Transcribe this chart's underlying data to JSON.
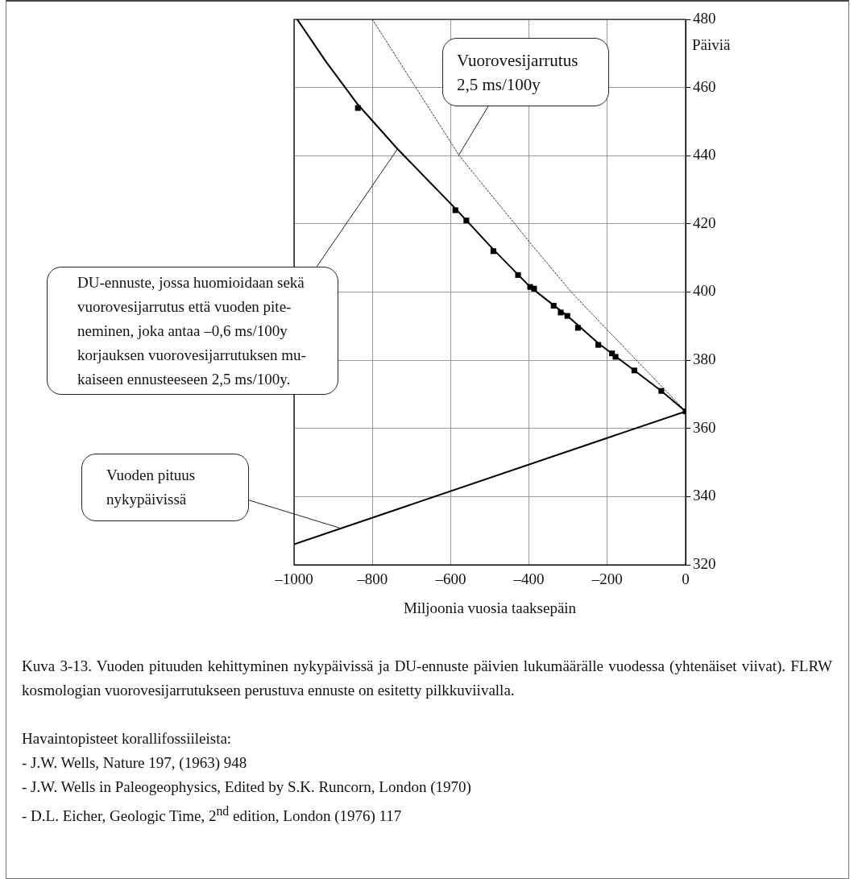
{
  "chart_data": {
    "type": "line",
    "xlabel": "Miljoonia vuosia taaksepäin",
    "ylabel": "Päiviä",
    "xlim": [
      -1000,
      0
    ],
    "ylim": [
      320,
      480
    ],
    "xticks": [
      {
        "value": -1000,
        "label": "–1000"
      },
      {
        "value": -800,
        "label": "–800"
      },
      {
        "value": -600,
        "label": "–600"
      },
      {
        "value": -400,
        "label": "–400"
      },
      {
        "value": -200,
        "label": "–200"
      },
      0
    ],
    "yticks": [
      320,
      340,
      360,
      380,
      400,
      420,
      440,
      460,
      480
    ],
    "grid": true,
    "legend": false,
    "series": [
      {
        "color": "#000000",
        "line_style": "solid",
        "marker": "none",
        "x": [
          -992,
          -918,
          -837,
          -736,
          -588,
          -491,
          -397,
          -302,
          -223,
          -131,
          -62,
          0
        ],
        "values": [
          480,
          467.5,
          455,
          442,
          424.5,
          412.5,
          401.5,
          393,
          385,
          377,
          371,
          365
        ]
      },
      {
        "color": "#333333",
        "line_style": "dotted",
        "marker": "none",
        "x": [
          -800,
          -578,
          -401,
          -292,
          -201,
          -117,
          0
        ],
        "values": [
          480,
          440,
          415,
          400,
          389,
          379,
          365
        ]
      },
      {
        "color": "#000000",
        "line_style": "solid",
        "marker": "none",
        "x": [
          -1000,
          0
        ],
        "values": [
          326,
          365
        ]
      },
      {
        "type": "scatter",
        "color": "#000000",
        "marker": "square",
        "x": [
          -837,
          -588,
          -560,
          -491,
          -428,
          -397,
          -387,
          -337,
          -319,
          -302,
          -275,
          -223,
          -188,
          -179,
          -131,
          -62,
          0
        ],
        "values": [
          454,
          424,
          421,
          412,
          405,
          401.5,
          401,
          396,
          394,
          393,
          389.5,
          384.5,
          382,
          381,
          377,
          371,
          365
        ]
      }
    ],
    "annotations": [
      {
        "text": "Vuorovesijarrutus\n2,5 ms/100y",
        "x": -580,
        "y": 440
      },
      {
        "text": "DU-ennuste, jossa huomioidaan sekä\nvuorovesijarrutus että vuoden pite-\nneminen, joka antaa –0,6 ms/100y\nkorjauksen vuorovesijarrutuksen mu-\nkaiseen ennusteeseen 2,5 ms/100y.",
        "x": -736,
        "y": 442
      },
      {
        "text": "Vuoden pituus\nnykypäivissä",
        "x": -880,
        "y": 330.68
      },
      "Kuva 3-13. Vuoden pituuden kehittyminen nykypäivissä ja DU-ennuste päivien lukumäärälle vuodessa (yhtenäiset viivat). FLRW kosmologian vuorovesijarrutukseen perustuva ennuste on esitetty pilkkuviivalla.",
      "Havaintopisteet korallifossiileista:",
      "- J.W. Wells, Nature 197, (1963) 948",
      "- J.W. Wells in Paleogeophysics, Edited by S.K. Runcorn, London (1970)",
      "- D.L. Eicher, Geologic Time, 2$^{nd}$ edition, London (1976) 117"
    ]
  }
}
